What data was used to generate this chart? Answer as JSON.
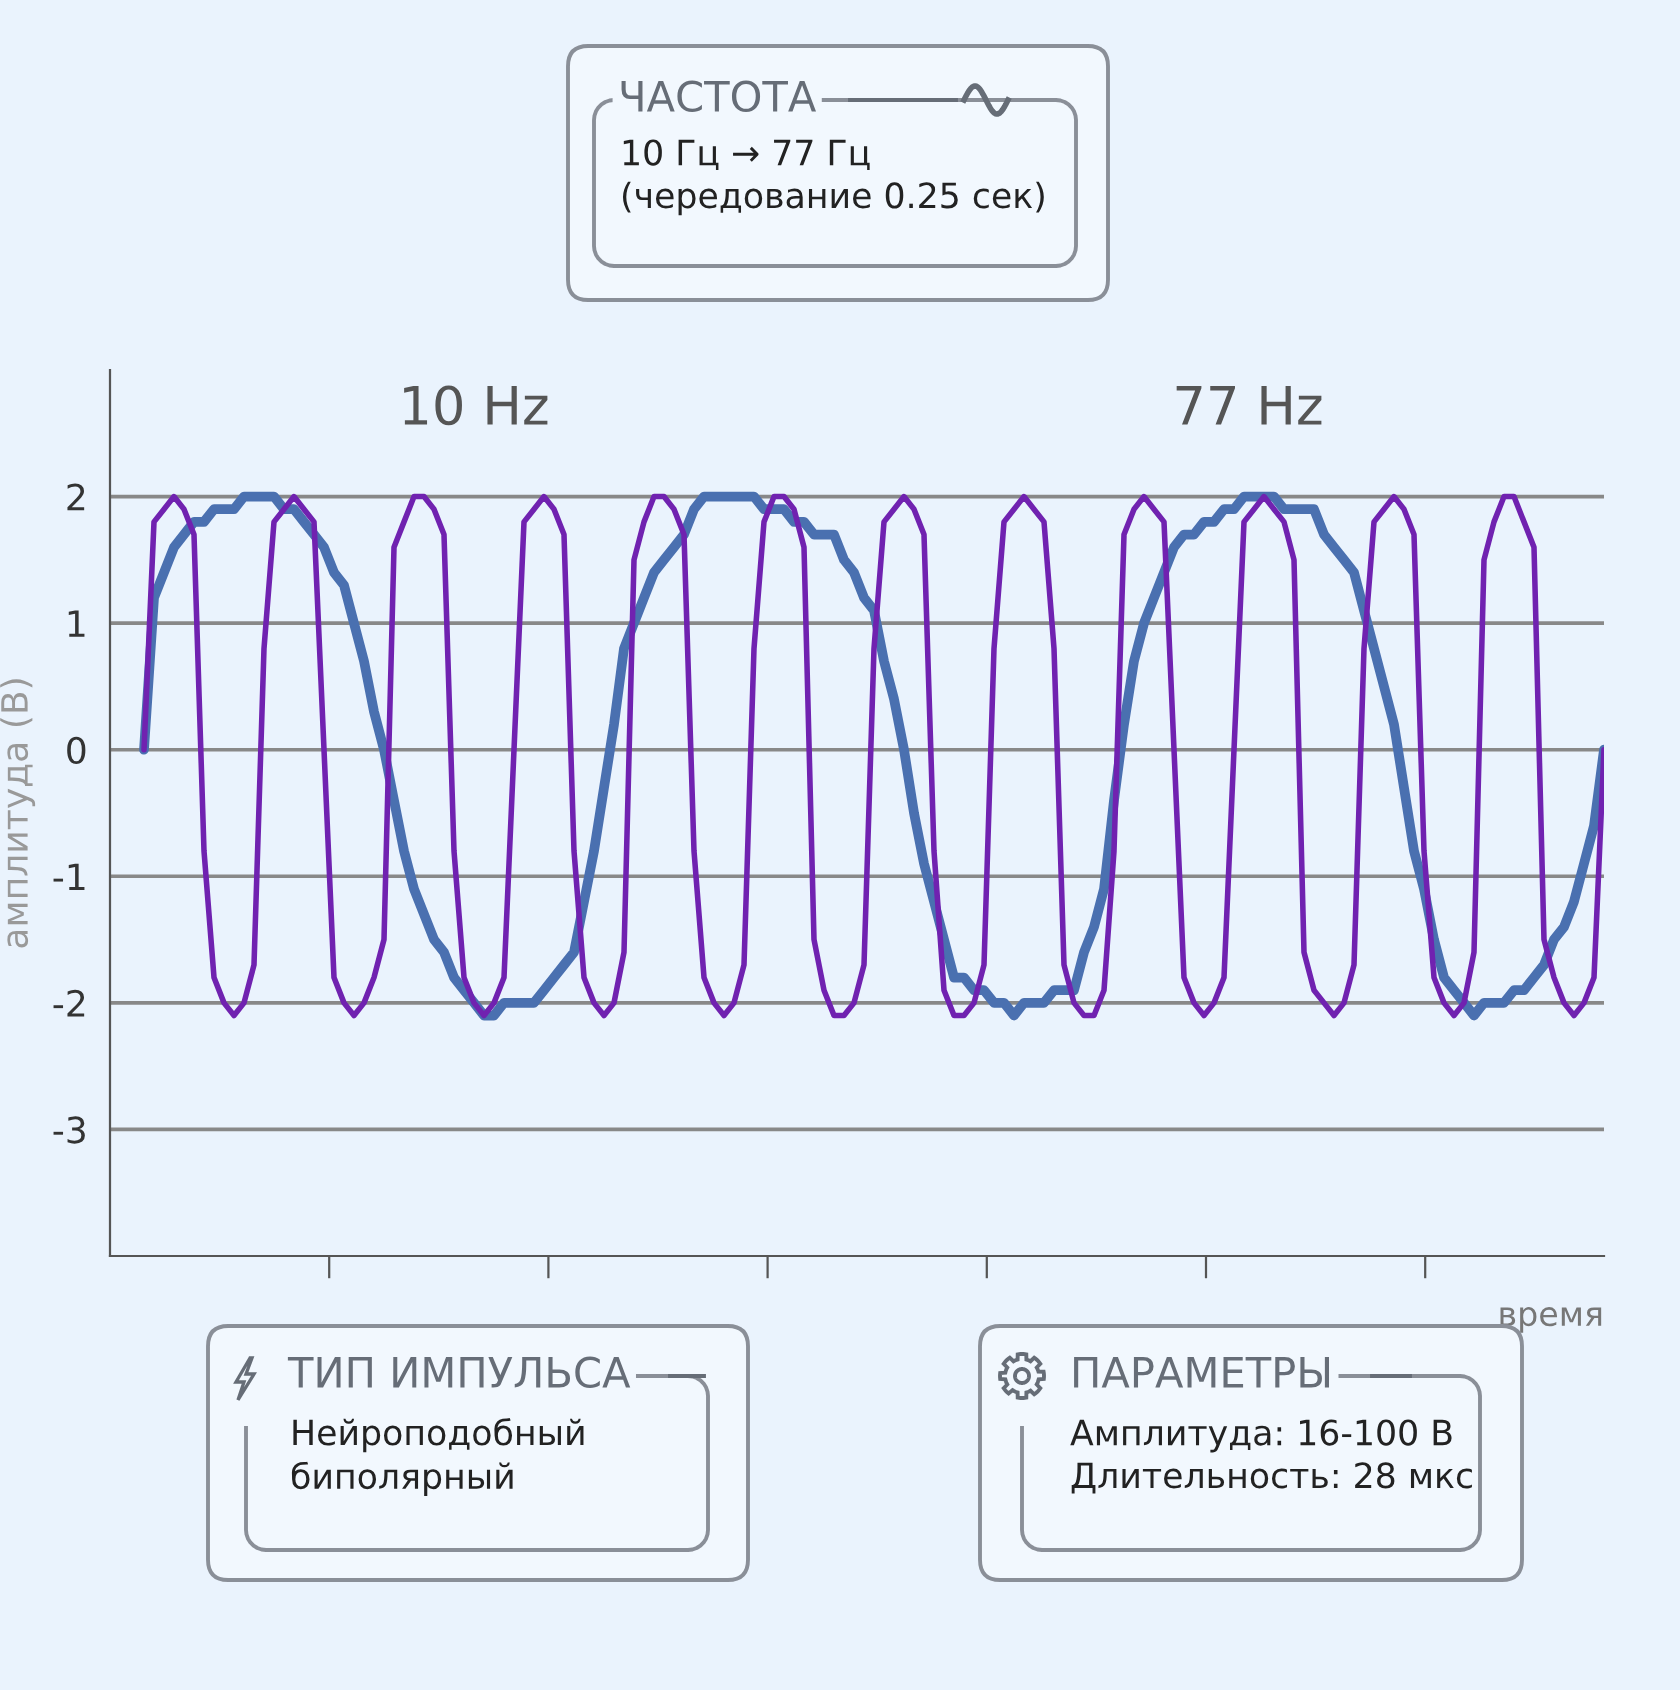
{
  "chart_data": {
    "type": "line",
    "xlabel": "время",
    "ylabel": "амплитуда (В)",
    "categories": [
      null,
      null,
      null,
      null,
      null,
      null,
      null,
      null,
      null,
      null,
      null,
      null,
      null,
      null,
      null,
      null,
      null,
      null,
      null,
      null,
      null,
      null,
      null,
      null,
      null,
      null,
      null,
      null,
      null,
      null,
      null,
      null,
      null,
      null,
      null,
      null,
      null,
      null,
      null,
      null,
      null,
      null,
      null,
      null,
      null,
      null,
      null,
      null,
      null,
      null,
      null,
      null,
      null,
      null,
      null,
      null,
      null,
      null,
      null,
      null,
      null,
      null,
      null,
      null,
      null,
      null,
      null,
      null,
      null,
      null,
      null,
      null,
      null,
      null,
      null,
      null,
      null,
      null,
      null,
      null,
      null,
      null,
      null,
      null,
      null,
      null,
      null,
      null,
      null,
      null,
      null,
      null,
      null,
      null,
      null,
      null,
      null,
      null,
      null,
      null,
      null,
      null,
      null,
      null,
      null,
      null,
      null,
      null,
      null,
      null,
      null,
      null,
      null,
      null,
      null,
      null,
      null,
      null,
      null,
      null,
      null,
      null,
      null,
      null,
      null,
      null,
      null,
      null,
      null,
      null,
      null,
      null,
      null,
      null,
      null,
      null,
      null,
      null,
      null,
      null,
      null,
      null,
      null,
      null,
      null,
      null,
      null
    ],
    "ylim": [
      -4,
      3
    ],
    "yticks": [
      -3,
      -2,
      -1,
      0,
      1,
      2
    ],
    "grid": "y",
    "tick_labels": "y",
    "series": [
      {
        "color": "#4a70b0",
        "values": [
          0,
          1.2,
          1.4,
          1.6,
          1.7,
          1.8,
          1.8,
          1.9,
          1.9,
          1.9,
          2.0,
          2.0,
          2.0,
          2.0,
          1.9,
          1.9,
          1.8,
          1.7,
          1.6,
          1.4,
          1.3,
          1.0,
          0.7,
          0.3,
          0,
          -0.4,
          -0.8,
          -1.1,
          -1.3,
          -1.5,
          -1.6,
          -1.8,
          -1.9,
          -2.0,
          -2.1,
          -2.1,
          -2.0,
          -2.0,
          -2.0,
          -2.0,
          -1.9,
          -1.8,
          -1.7,
          -1.6,
          -1.2,
          -0.8,
          -0.3,
          0.2,
          0.8,
          1.0,
          1.2,
          1.4,
          1.5,
          1.6,
          1.7,
          1.9,
          2.0,
          2.0,
          2.0,
          2.0,
          2.0,
          2.0,
          1.9,
          1.9,
          1.9,
          1.8,
          1.8,
          1.7,
          1.7,
          1.7,
          1.5,
          1.4,
          1.2,
          1.1,
          0.7,
          0.4,
          0,
          -0.5,
          -0.9,
          -1.2,
          -1.5,
          -1.8,
          -1.8,
          -1.9,
          -1.9,
          -2.0,
          -2.0,
          -2.1,
          -2.0,
          -2.0,
          -2.0,
          -1.9,
          -1.9,
          -1.9,
          -1.6,
          -1.4,
          -1.1,
          -0.4,
          0.2,
          0.7,
          1.0,
          1.2,
          1.4,
          1.6,
          1.7,
          1.7,
          1.8,
          1.8,
          1.9,
          1.9,
          2.0,
          2.0,
          2.0,
          2.0,
          1.9,
          1.9,
          1.9,
          1.9,
          1.7,
          1.6,
          1.5,
          1.4,
          1.1,
          0.8,
          0.5,
          0.2,
          -0.3,
          -0.8,
          -1.1,
          -1.5,
          -1.8,
          -1.9,
          -2.0,
          -2.1,
          -2.0,
          -2.0,
          -2.0,
          -1.9,
          -1.9,
          -1.8,
          -1.7,
          -1.5,
          -1.4,
          -1.2,
          -0.9,
          -0.6,
          0
        ]
      },
      {
        "color": "#7022b0",
        "values": [
          0,
          1.8,
          1.9,
          2.0,
          1.9,
          1.7,
          -0.8,
          -1.8,
          -2.0,
          -2.1,
          -2.0,
          -1.7,
          0.8,
          1.8,
          1.9,
          2.0,
          1.9,
          1.8,
          0,
          -1.8,
          -2.0,
          -2.1,
          -2.0,
          -1.8,
          -1.5,
          1.6,
          1.8,
          2.0,
          2.0,
          1.9,
          1.7,
          -0.8,
          -1.8,
          -2.0,
          -2.1,
          -2.0,
          -1.8,
          0,
          1.8,
          1.9,
          2.0,
          1.9,
          1.7,
          -0.8,
          -1.8,
          -2.0,
          -2.1,
          -2.0,
          -1.6,
          1.5,
          1.8,
          2.0,
          2.0,
          1.9,
          1.7,
          -0.8,
          -1.8,
          -2.0,
          -2.1,
          -2.0,
          -1.7,
          0.8,
          1.8,
          2.0,
          2.0,
          1.9,
          1.6,
          -1.5,
          -1.9,
          -2.1,
          -2.1,
          -2.0,
          -1.7,
          0.8,
          1.8,
          1.9,
          2.0,
          1.9,
          1.7,
          -0.8,
          -1.9,
          -2.1,
          -2.1,
          -2.0,
          -1.7,
          0.8,
          1.8,
          1.9,
          2.0,
          1.9,
          1.8,
          0.8,
          -1.7,
          -2.0,
          -2.1,
          -2.1,
          -1.9,
          -0.8,
          1.7,
          1.9,
          2.0,
          1.9,
          1.8,
          0,
          -1.8,
          -2.0,
          -2.1,
          -2.0,
          -1.8,
          0,
          1.8,
          1.9,
          2.0,
          1.9,
          1.8,
          1.5,
          -1.6,
          -1.9,
          -2.0,
          -2.1,
          -2.0,
          -1.7,
          0.8,
          1.8,
          1.9,
          2.0,
          1.9,
          1.7,
          -0.8,
          -1.8,
          -2.0,
          -2.1,
          -2.0,
          -1.6,
          1.5,
          1.8,
          2.0,
          2.0,
          1.8,
          1.6,
          -1.5,
          -1.8,
          -2.0,
          -2.1,
          -2.0,
          -1.8,
          0
        ]
      }
    ],
    "annotations": [
      "10 Hz",
      "77 Hz",
      "ЧАСТОТА",
      "10 Гц → 77 Гц\n(чередование 0.25 сек)",
      "ТИП ИМПУЛЬСА",
      "Нейроподобный\nбиполярный",
      "ПАРАМЕТРЫ",
      "Амплитуда: 16-100 В\nДлительность: 28 мкс"
    ]
  }
}
